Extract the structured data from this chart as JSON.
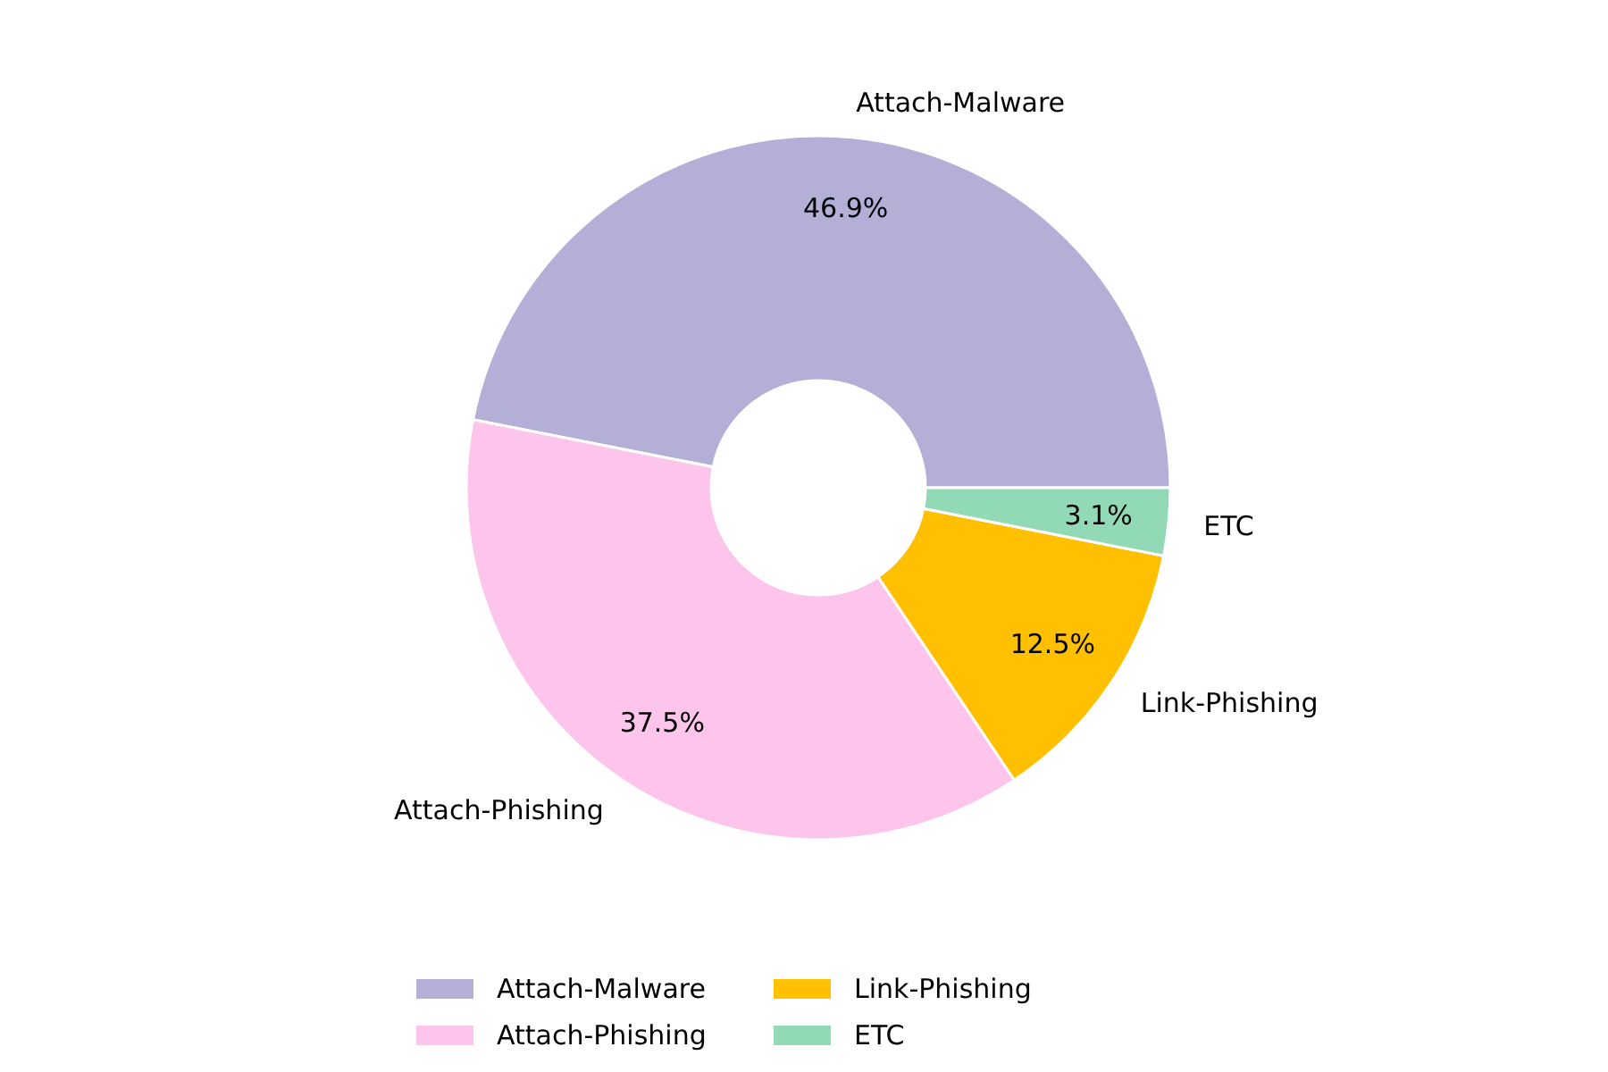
{
  "chart_data": {
    "type": "donut",
    "categories": [
      "Attach-Malware",
      "Attach-Phishing",
      "Link-Phishing",
      "ETC"
    ],
    "values": [
      46.9,
      37.5,
      12.5,
      3.1
    ],
    "value_labels": [
      "46.9%",
      "37.5%",
      "12.5%",
      "3.1%"
    ],
    "colors": [
      "#b3afd7",
      "#fdc4ec",
      "#fec000",
      "#92dab6"
    ],
    "legend": "bottom"
  }
}
